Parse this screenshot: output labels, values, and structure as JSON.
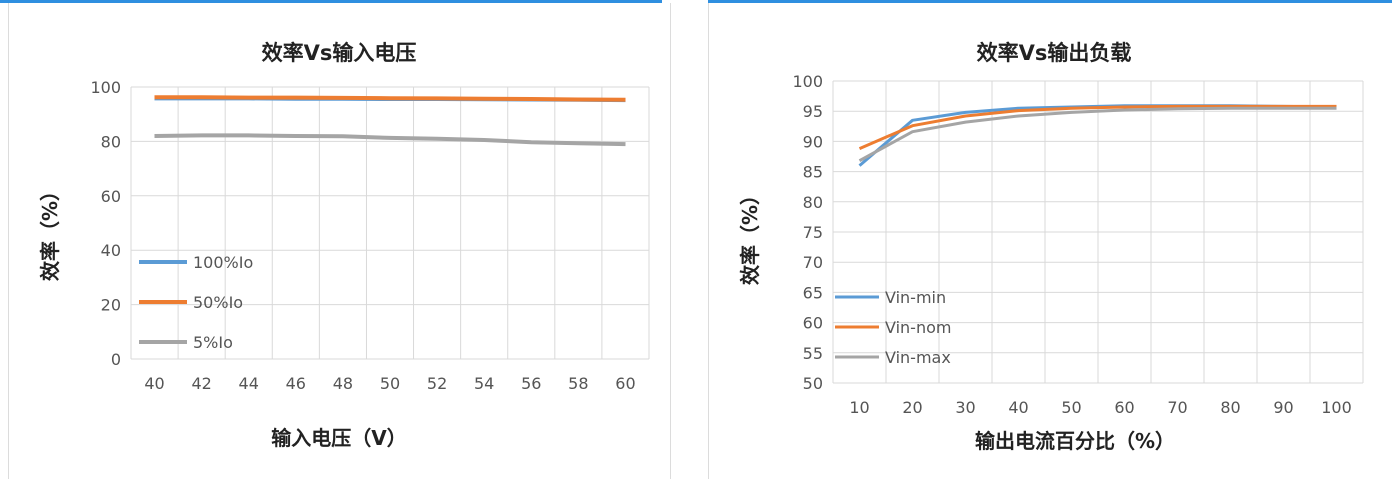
{
  "chart_data": [
    {
      "type": "line",
      "title": "效率Vs输入电压",
      "xlabel": "输入电压（V）",
      "ylabel": "效率（%）",
      "x": [
        40,
        42,
        44,
        46,
        48,
        50,
        52,
        54,
        56,
        58,
        60
      ],
      "xticks": [
        "40",
        "42",
        "44",
        "46",
        "48",
        "50",
        "52",
        "54",
        "56",
        "58",
        "60"
      ],
      "ylim": [
        0,
        100
      ],
      "yticks": [
        "0",
        "20",
        "40",
        "60",
        "80",
        "100"
      ],
      "grid": true,
      "legend": "left",
      "series": [
        {
          "name": "100%Io",
          "color": "#5b9bd5",
          "values": [
            95.8,
            95.8,
            95.8,
            95.7,
            95.7,
            95.6,
            95.6,
            95.5,
            95.4,
            95.3,
            95.2
          ]
        },
        {
          "name": "50%Io",
          "color": "#ed7d31",
          "values": [
            96.2,
            96.2,
            96.1,
            96.1,
            96.0,
            95.9,
            95.8,
            95.7,
            95.6,
            95.4,
            95.3
          ]
        },
        {
          "name": "5%Io",
          "color": "#a5a5a5",
          "values": [
            82,
            82.2,
            82.2,
            82,
            81.9,
            81.3,
            81,
            80.5,
            79.7,
            79.3,
            79
          ]
        }
      ]
    },
    {
      "type": "line",
      "title": "效率Vs输出负载",
      "xlabel": "输出电流百分比（%）",
      "ylabel": "效率（%）",
      "x": [
        10,
        20,
        30,
        40,
        50,
        60,
        70,
        80,
        90,
        100
      ],
      "xticks": [
        "10",
        "20",
        "30",
        "40",
        "50",
        "60",
        "70",
        "80",
        "90",
        "100"
      ],
      "ylim": [
        50,
        100
      ],
      "yticks": [
        "50",
        "55",
        "60",
        "65",
        "70",
        "75",
        "80",
        "85",
        "90",
        "95",
        "100"
      ],
      "grid": true,
      "legend": "bottom-left",
      "series": [
        {
          "name": "Vin-min",
          "color": "#5b9bd5",
          "values": [
            86,
            93.5,
            94.8,
            95.5,
            95.7,
            95.9,
            95.9,
            95.9,
            95.8,
            95.7
          ]
        },
        {
          "name": "Vin-nom",
          "color": "#ed7d31",
          "values": [
            88.8,
            92.6,
            94.2,
            95.1,
            95.5,
            95.7,
            95.8,
            95.8,
            95.8,
            95.8
          ]
        },
        {
          "name": "Vin-max",
          "color": "#a5a5a5",
          "values": [
            86.8,
            91.6,
            93.2,
            94.2,
            94.8,
            95.2,
            95.4,
            95.5,
            95.5,
            95.5
          ]
        }
      ]
    }
  ]
}
